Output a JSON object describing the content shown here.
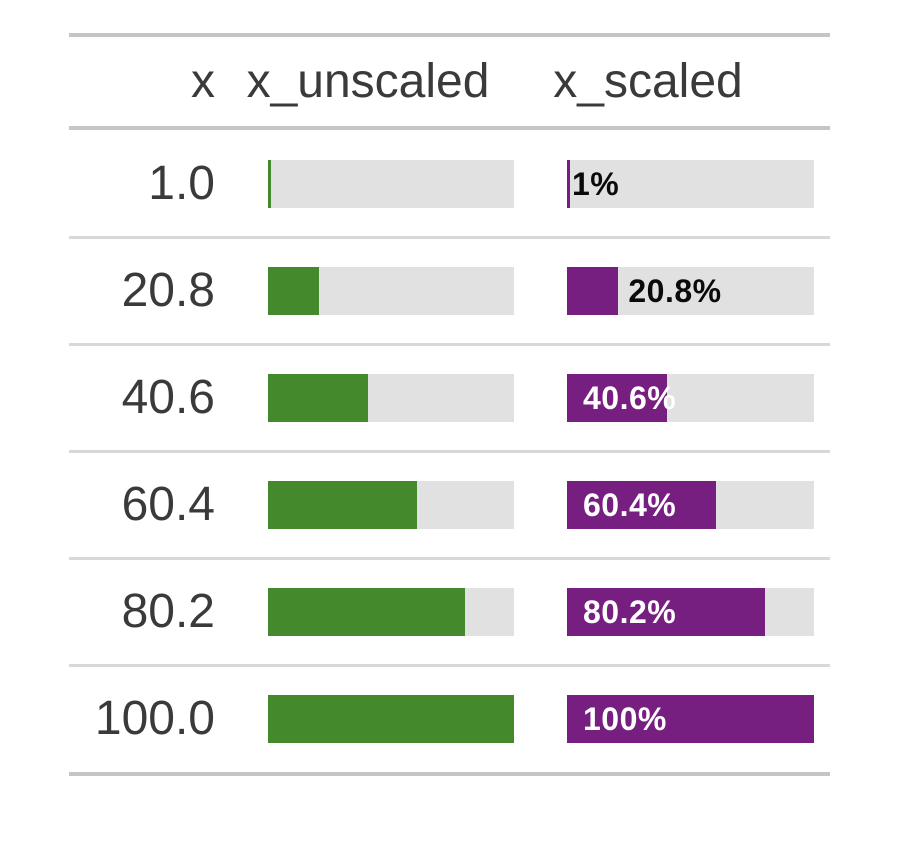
{
  "colors": {
    "green": "#45892D",
    "purple": "#771F80",
    "track": "#E1E1E1",
    "rule": "#C5C5C5",
    "separator": "#D8D8D8",
    "text": "#3A3A3A",
    "label_outside": "#0A0A0A",
    "label_inside": "#FFFFFF"
  },
  "table": {
    "columns": [
      {
        "id": "x",
        "label": "x"
      },
      {
        "id": "x_unscaled",
        "label": "x_unscaled"
      },
      {
        "id": "x_scaled",
        "label": "x_scaled"
      }
    ],
    "rows": [
      {
        "x": "1.0",
        "x_unscaled_pct": 1,
        "x_scaled_pct": 1,
        "x_scaled_label": "1%"
      },
      {
        "x": "20.8",
        "x_unscaled_pct": 20.8,
        "x_scaled_pct": 20.8,
        "x_scaled_label": "20.8%"
      },
      {
        "x": "40.6",
        "x_unscaled_pct": 40.6,
        "x_scaled_pct": 40.6,
        "x_scaled_label": "40.6%"
      },
      {
        "x": "60.4",
        "x_unscaled_pct": 60.4,
        "x_scaled_pct": 60.4,
        "x_scaled_label": "60.4%"
      },
      {
        "x": "80.2",
        "x_unscaled_pct": 80.2,
        "x_scaled_pct": 80.2,
        "x_scaled_label": "80.2%"
      },
      {
        "x": "100.0",
        "x_unscaled_pct": 100,
        "x_scaled_pct": 100,
        "x_scaled_label": "100%"
      }
    ]
  },
  "chart_data": {
    "type": "table",
    "title": "",
    "columns": [
      "x",
      "x_unscaled",
      "x_scaled"
    ],
    "x_values": [
      1.0,
      20.8,
      40.6,
      60.4,
      80.2,
      100.0
    ],
    "series": [
      {
        "name": "x_unscaled",
        "type": "bar",
        "orientation": "horizontal",
        "values": [
          1.0,
          20.8,
          40.6,
          60.4,
          80.2,
          100.0
        ],
        "range": [
          0,
          100
        ],
        "color": "#45892D",
        "labels": []
      },
      {
        "name": "x_scaled",
        "type": "bar",
        "orientation": "horizontal",
        "values": [
          1.0,
          20.8,
          40.6,
          60.4,
          80.2,
          100.0
        ],
        "range": [
          0,
          100
        ],
        "color": "#771F80",
        "labels": [
          "1%",
          "20.8%",
          "40.6%",
          "60.4%",
          "80.2%",
          "100%"
        ]
      }
    ],
    "legend": "none",
    "grid": "off"
  }
}
